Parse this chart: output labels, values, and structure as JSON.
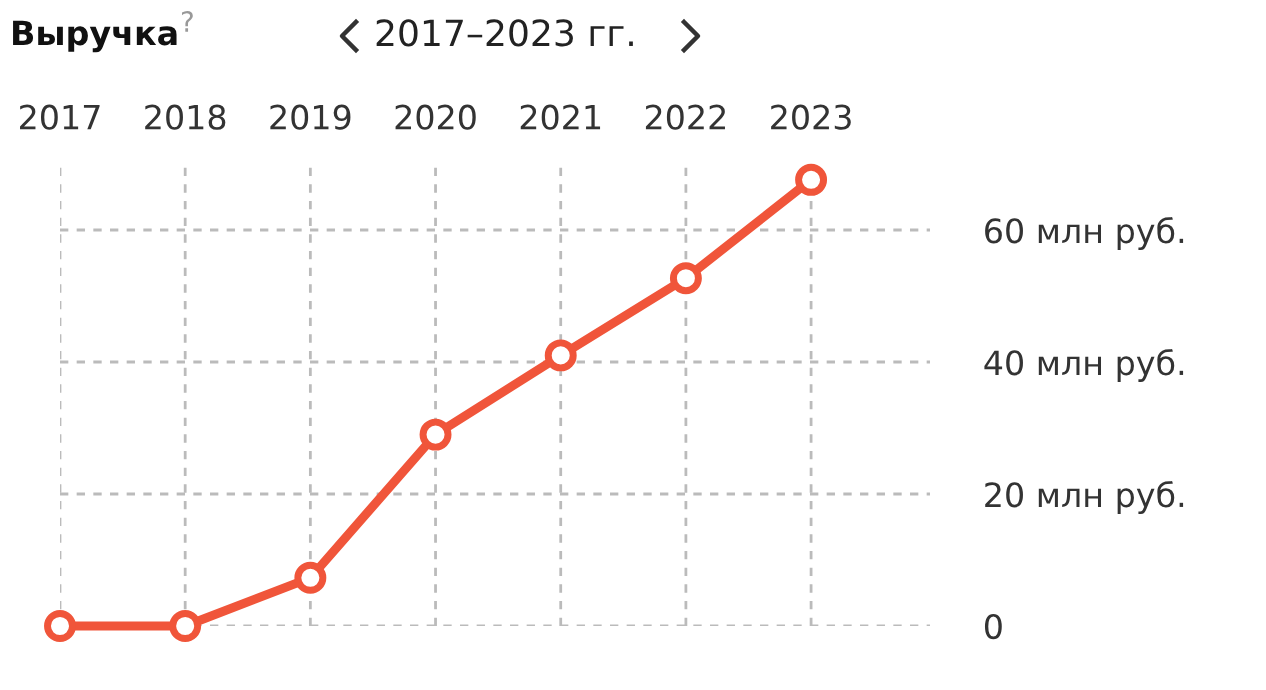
{
  "chart_data": {
    "type": "line",
    "title": "Выручка",
    "subtitle": "2017–2023 гг.",
    "annotations": [
      "?"
    ],
    "categories": [
      "2017",
      "2018",
      "2019",
      "2020",
      "2021",
      "2022",
      "2023"
    ],
    "series": [
      {
        "color": "#f0553a",
        "values": [
          0,
          0,
          7.3,
          29,
          41,
          52.7,
          67.6
        ]
      }
    ],
    "ylim": [
      0,
      70
    ],
    "yticks": [
      0,
      {
        "value": 20,
        "label": "20 млн руб."
      },
      {
        "value": 40,
        "label": "40 млн руб."
      },
      {
        "value": 60,
        "label": "60 млн руб."
      }
    ],
    "grid": true,
    "marker": "circle",
    "line_style": "solid",
    "legend": false
  }
}
